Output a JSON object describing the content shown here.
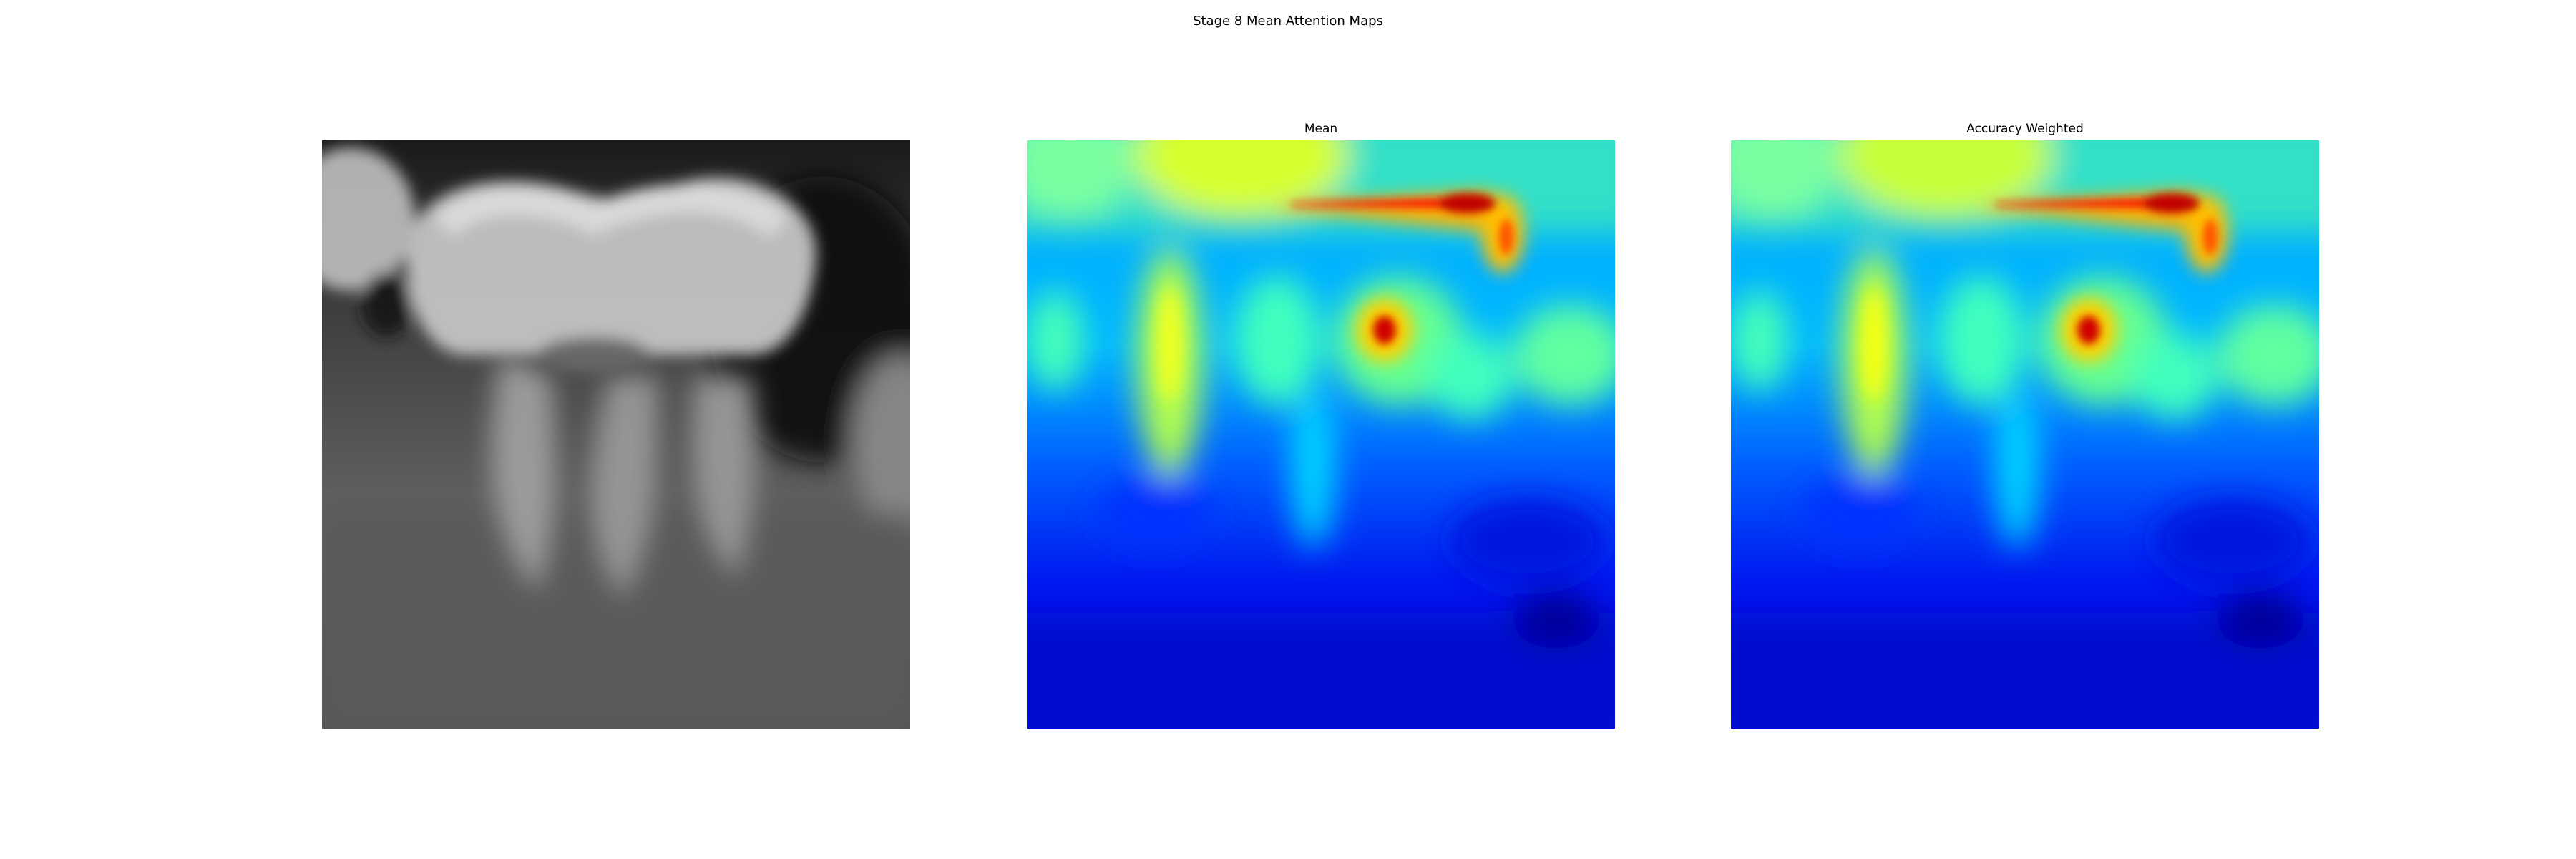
{
  "figure": {
    "title": "Stage 8 Mean Attention Maps",
    "panels": [
      {
        "title": "",
        "content": "grayscale dental radiograph of a molar"
      },
      {
        "title": "Mean",
        "content": "jet colormap attention heatmap"
      },
      {
        "title": "Accuracy Weighted",
        "content": "jet colormap attention heatmap"
      }
    ]
  }
}
